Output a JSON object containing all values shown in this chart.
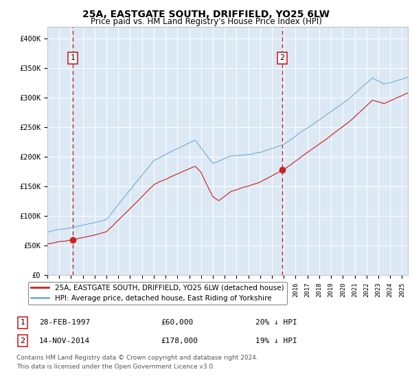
{
  "title": "25A, EASTGATE SOUTH, DRIFFIELD, YO25 6LW",
  "subtitle": "Price paid vs. HM Land Registry's House Price Index (HPI)",
  "legend_line1": "25A, EASTGATE SOUTH, DRIFFIELD, YO25 6LW (detached house)",
  "legend_line2": "HPI: Average price, detached house, East Riding of Yorkshire",
  "transaction1_date": "28-FEB-1997",
  "transaction1_price": 60000,
  "transaction1_label": "20% ↓ HPI",
  "transaction2_date": "14-NOV-2014",
  "transaction2_price": 178000,
  "transaction2_label": "19% ↓ HPI",
  "footnote1": "Contains HM Land Registry data © Crown copyright and database right 2024.",
  "footnote2": "This data is licensed under the Open Government Licence v3.0.",
  "hpi_color": "#7aafd4",
  "price_color": "#cc2222",
  "bg_color": "#dce9f5",
  "grid_color": "#ffffff",
  "ylim": [
    0,
    420000
  ],
  "ytick_vals": [
    0,
    50000,
    100000,
    150000,
    200000,
    250000,
    300000,
    350000,
    400000
  ],
  "ytick_labels": [
    "£0",
    "£50K",
    "£100K",
    "£150K",
    "£200K",
    "£250K",
    "£300K",
    "£350K",
    "£400K"
  ],
  "xstart": 1995.0,
  "xend": 2025.5,
  "t1_year": 1997.15,
  "t2_year": 2014.87
}
